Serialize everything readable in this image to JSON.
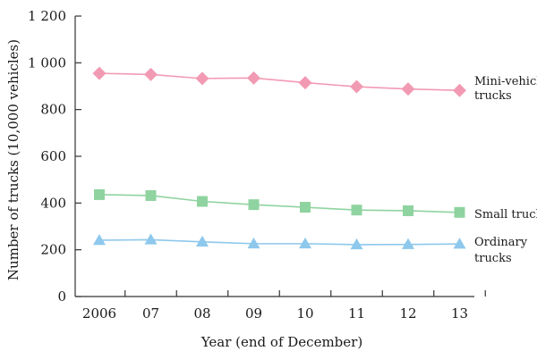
{
  "chart_data": {
    "type": "line",
    "title": "",
    "xlabel": "Year (end of December)",
    "ylabel": "Number of trucks (10,000 vehicles)",
    "categories": [
      "2006",
      "07",
      "08",
      "09",
      "10",
      "11",
      "12",
      "13"
    ],
    "ylim": [
      0,
      1200
    ],
    "yticks": [
      0,
      200,
      400,
      600,
      800,
      1000,
      1200
    ],
    "ytick_labels": [
      "0",
      "200",
      "400",
      "600",
      "800",
      "1 000",
      "1 200"
    ],
    "grid": false,
    "series": [
      {
        "name": "Mini-vehicle trucks",
        "label_lines": [
          "Mini-vehicle",
          "trucks"
        ],
        "marker": "diamond",
        "color": "#f29ab4",
        "values": [
          955,
          950,
          933,
          935,
          915,
          898,
          888,
          882
        ]
      },
      {
        "name": "Small trucks",
        "label_lines": [
          "Small trucks"
        ],
        "marker": "square",
        "color": "#8fd3a0",
        "values": [
          436,
          432,
          407,
          393,
          382,
          370,
          367,
          360
        ]
      },
      {
        "name": "Ordinary trucks",
        "label_lines": [
          "Ordinary",
          "trucks"
        ],
        "marker": "triangle",
        "color": "#8ec8ec",
        "values": [
          241,
          243,
          234,
          226,
          226,
          222,
          223,
          225
        ]
      }
    ]
  }
}
